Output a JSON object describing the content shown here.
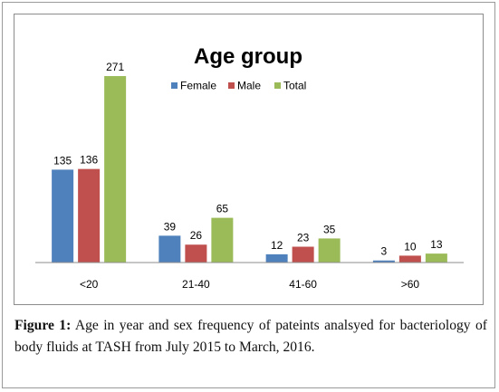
{
  "chart_data": {
    "type": "bar",
    "title": "Age group",
    "categories": [
      "<20",
      "21-40",
      "41-60",
      ">60"
    ],
    "series": [
      {
        "name": "Female",
        "color": "#4f81bd",
        "values": [
          135,
          39,
          12,
          3
        ]
      },
      {
        "name": "Male",
        "color": "#c0504d",
        "values": [
          136,
          26,
          23,
          10
        ]
      },
      {
        "name": "Total",
        "color": "#9bbb59",
        "values": [
          271,
          65,
          35,
          13
        ]
      }
    ],
    "xlabel": "",
    "ylabel": "",
    "ylim": [
      0,
      300
    ],
    "data_labels": true,
    "legend_position": "top-center",
    "grid": false
  },
  "caption": {
    "label": "Figure 1:",
    "text": " Age in year and sex frequency of pateints analsyed for bacteriology of body fluids at TASH from July 2015 to March, 2016."
  }
}
